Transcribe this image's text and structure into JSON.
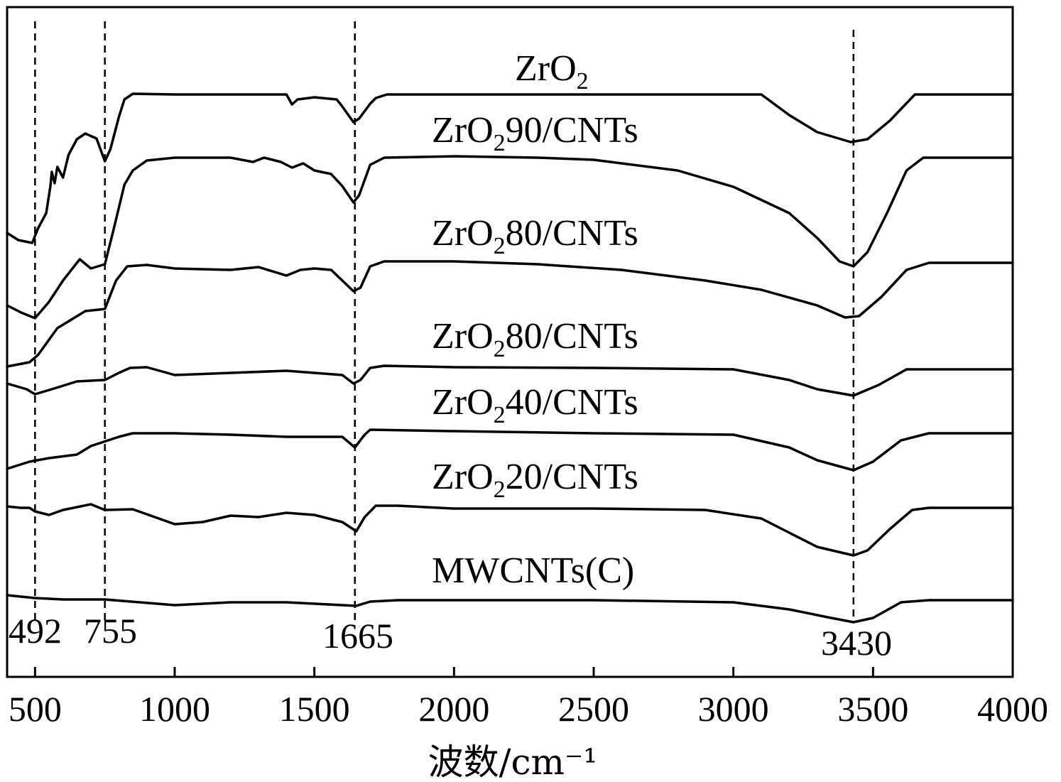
{
  "chart_data": {
    "type": "line",
    "title": "",
    "xlabel": "波数/cm⁻¹",
    "ylabel": "",
    "xlim": [
      400,
      4000
    ],
    "x_ticks": [
      "500",
      "1000",
      "1500",
      "2000",
      "2500",
      "3000",
      "3500",
      "4000"
    ],
    "y_ticks_shown": false,
    "grid": false,
    "legend": "none",
    "ref_lines": [
      {
        "x": 500,
        "label": "492"
      },
      {
        "x": 750,
        "label": "755"
      },
      {
        "x": 1645,
        "label": "1665"
      },
      {
        "x": 3430,
        "label": "3430"
      }
    ],
    "series": [
      {
        "label_base": "ZrO",
        "label_sub": "2",
        "label_rest": "",
        "points": [
          [
            400,
            328
          ],
          [
            440,
            338
          ],
          [
            490,
            342
          ],
          [
            510,
            322
          ],
          [
            540,
            300
          ],
          [
            555,
            262
          ],
          [
            560,
            242
          ],
          [
            570,
            258
          ],
          [
            580,
            235
          ],
          [
            600,
            250
          ],
          [
            620,
            218
          ],
          [
            650,
            196
          ],
          [
            680,
            188
          ],
          [
            720,
            195
          ],
          [
            750,
            227
          ],
          [
            770,
            210
          ],
          [
            800,
            165
          ],
          [
            820,
            140
          ],
          [
            850,
            132
          ],
          [
            1000,
            133
          ],
          [
            1200,
            133
          ],
          [
            1400,
            133
          ],
          [
            1420,
            147
          ],
          [
            1440,
            140
          ],
          [
            1500,
            137
          ],
          [
            1580,
            140
          ],
          [
            1600,
            150
          ],
          [
            1640,
            172
          ],
          [
            1660,
            167
          ],
          [
            1700,
            146
          ],
          [
            1720,
            138
          ],
          [
            1760,
            133
          ],
          [
            2000,
            133
          ],
          [
            2500,
            133
          ],
          [
            3100,
            133
          ],
          [
            3200,
            162
          ],
          [
            3300,
            186
          ],
          [
            3420,
            200
          ],
          [
            3480,
            196
          ],
          [
            3560,
            170
          ],
          [
            3650,
            133
          ],
          [
            3800,
            133
          ],
          [
            4000,
            133
          ]
        ]
      },
      {
        "label_base": "ZrO",
        "label_sub": "2",
        "label_rest": "90/CNTs",
        "points": [
          [
            400,
            430
          ],
          [
            450,
            440
          ],
          [
            500,
            448
          ],
          [
            550,
            425
          ],
          [
            600,
            395
          ],
          [
            660,
            365
          ],
          [
            700,
            378
          ],
          [
            750,
            372
          ],
          [
            780,
            325
          ],
          [
            820,
            260
          ],
          [
            850,
            240
          ],
          [
            900,
            226
          ],
          [
            1000,
            222
          ],
          [
            1200,
            222
          ],
          [
            1280,
            228
          ],
          [
            1320,
            222
          ],
          [
            1380,
            228
          ],
          [
            1420,
            236
          ],
          [
            1460,
            230
          ],
          [
            1500,
            240
          ],
          [
            1560,
            245
          ],
          [
            1600,
            262
          ],
          [
            1640,
            285
          ],
          [
            1660,
            275
          ],
          [
            1700,
            232
          ],
          [
            1750,
            222
          ],
          [
            2000,
            220
          ],
          [
            2300,
            222
          ],
          [
            2500,
            225
          ],
          [
            2800,
            240
          ],
          [
            3000,
            263
          ],
          [
            3200,
            300
          ],
          [
            3300,
            335
          ],
          [
            3380,
            368
          ],
          [
            3430,
            375
          ],
          [
            3480,
            355
          ],
          [
            3550,
            300
          ],
          [
            3620,
            240
          ],
          [
            3680,
            222
          ],
          [
            4000,
            222
          ]
        ]
      },
      {
        "label_base": "ZrO",
        "label_sub": "2",
        "label_rest": "80/CNTs",
        "points": [
          [
            400,
            516
          ],
          [
            480,
            510
          ],
          [
            510,
            500
          ],
          [
            580,
            462
          ],
          [
            680,
            438
          ],
          [
            750,
            435
          ],
          [
            790,
            395
          ],
          [
            830,
            375
          ],
          [
            900,
            373
          ],
          [
            1000,
            378
          ],
          [
            1200,
            380
          ],
          [
            1300,
            376
          ],
          [
            1400,
            388
          ],
          [
            1450,
            380
          ],
          [
            1500,
            378
          ],
          [
            1560,
            380
          ],
          [
            1600,
            395
          ],
          [
            1640,
            410
          ],
          [
            1665,
            405
          ],
          [
            1700,
            375
          ],
          [
            1750,
            368
          ],
          [
            2000,
            368
          ],
          [
            2300,
            372
          ],
          [
            2600,
            380
          ],
          [
            2900,
            395
          ],
          [
            3100,
            408
          ],
          [
            3300,
            430
          ],
          [
            3400,
            447
          ],
          [
            3450,
            445
          ],
          [
            3530,
            418
          ],
          [
            3620,
            380
          ],
          [
            3700,
            370
          ],
          [
            4000,
            370
          ]
        ]
      },
      {
        "label_base": "ZrO",
        "label_sub": "2",
        "label_rest": "80/CNTs",
        "points": [
          [
            400,
            540
          ],
          [
            470,
            548
          ],
          [
            500,
            555
          ],
          [
            560,
            548
          ],
          [
            650,
            537
          ],
          [
            750,
            535
          ],
          [
            800,
            525
          ],
          [
            840,
            518
          ],
          [
            900,
            517
          ],
          [
            1000,
            528
          ],
          [
            1200,
            525
          ],
          [
            1400,
            522
          ],
          [
            1600,
            528
          ],
          [
            1640,
            540
          ],
          [
            1665,
            535
          ],
          [
            1700,
            518
          ],
          [
            1750,
            515
          ],
          [
            2000,
            517
          ],
          [
            2500,
            518
          ],
          [
            3000,
            520
          ],
          [
            3200,
            535
          ],
          [
            3300,
            548
          ],
          [
            3430,
            557
          ],
          [
            3520,
            542
          ],
          [
            3620,
            520
          ],
          [
            4000,
            520
          ]
        ]
      },
      {
        "label_base": "ZrO",
        "label_sub": "2",
        "label_rest": "40/CNTs",
        "points": [
          [
            400,
            660
          ],
          [
            480,
            650
          ],
          [
            550,
            645
          ],
          [
            650,
            640
          ],
          [
            700,
            628
          ],
          [
            800,
            615
          ],
          [
            850,
            610
          ],
          [
            1000,
            610
          ],
          [
            1200,
            612
          ],
          [
            1400,
            615
          ],
          [
            1600,
            615
          ],
          [
            1645,
            630
          ],
          [
            1680,
            612
          ],
          [
            1700,
            605
          ],
          [
            2000,
            607
          ],
          [
            2500,
            610
          ],
          [
            3000,
            612
          ],
          [
            3200,
            630
          ],
          [
            3300,
            648
          ],
          [
            3430,
            662
          ],
          [
            3500,
            650
          ],
          [
            3600,
            620
          ],
          [
            3700,
            610
          ],
          [
            4000,
            610
          ]
        ]
      },
      {
        "label_base": "ZrO",
        "label_sub": "2",
        "label_rest": "20/CNTs",
        "points": [
          [
            400,
            713
          ],
          [
            450,
            715
          ],
          [
            480,
            715
          ],
          [
            500,
            720
          ],
          [
            550,
            725
          ],
          [
            600,
            718
          ],
          [
            700,
            710
          ],
          [
            750,
            718
          ],
          [
            850,
            717
          ],
          [
            1000,
            738
          ],
          [
            1100,
            735
          ],
          [
            1200,
            726
          ],
          [
            1300,
            728
          ],
          [
            1400,
            722
          ],
          [
            1500,
            725
          ],
          [
            1600,
            735
          ],
          [
            1650,
            748
          ],
          [
            1680,
            728
          ],
          [
            1720,
            712
          ],
          [
            1800,
            712
          ],
          [
            2000,
            716
          ],
          [
            2500,
            716
          ],
          [
            2900,
            718
          ],
          [
            3100,
            730
          ],
          [
            3200,
            750
          ],
          [
            3300,
            770
          ],
          [
            3430,
            782
          ],
          [
            3480,
            775
          ],
          [
            3560,
            745
          ],
          [
            3640,
            718
          ],
          [
            3700,
            715
          ],
          [
            4000,
            715
          ]
        ]
      },
      {
        "label_base": "MWCNTs(C)",
        "label_sub": "",
        "label_rest": "",
        "points": [
          [
            400,
            838
          ],
          [
            500,
            842
          ],
          [
            600,
            844
          ],
          [
            750,
            844
          ],
          [
            1000,
            852
          ],
          [
            1200,
            848
          ],
          [
            1400,
            848
          ],
          [
            1500,
            850
          ],
          [
            1600,
            852
          ],
          [
            1650,
            853
          ],
          [
            1700,
            847
          ],
          [
            1800,
            845
          ],
          [
            2000,
            845
          ],
          [
            2500,
            845
          ],
          [
            3000,
            848
          ],
          [
            3200,
            858
          ],
          [
            3350,
            870
          ],
          [
            3430,
            876
          ],
          [
            3500,
            870
          ],
          [
            3600,
            848
          ],
          [
            3700,
            845
          ],
          [
            4000,
            845
          ]
        ]
      }
    ]
  }
}
